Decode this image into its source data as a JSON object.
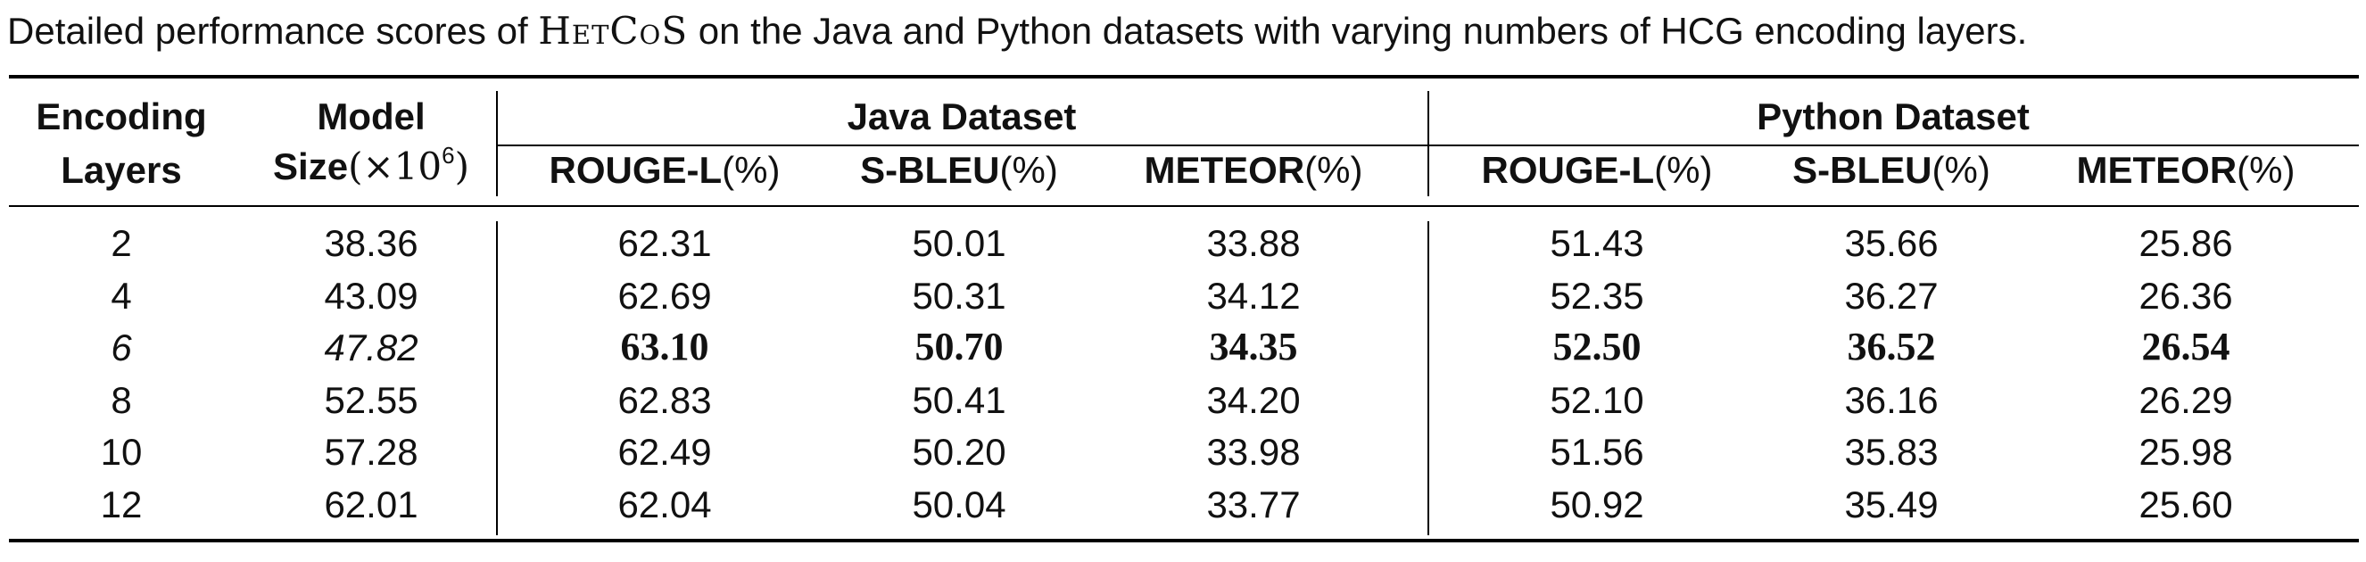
{
  "caption": {
    "prefix": "Detailed performance scores of ",
    "model_name": "HetCoS",
    "suffix": " on the Java and Python datasets with varying numbers of HCG encoding layers."
  },
  "header": {
    "encoding_line1": "Encoding",
    "encoding_line2": "Layers",
    "model_line1": "Model",
    "model_line2_text": "Size",
    "model_line2_unit": "(×10",
    "model_line2_exp": "6",
    "model_line2_close": ")",
    "java_group": "Java Dataset",
    "python_group": "Python Dataset",
    "metrics": [
      {
        "name": "ROUGE-L",
        "unit": "(%)"
      },
      {
        "name": "S-BLEU",
        "unit": "(%)"
      },
      {
        "name": "METEOR",
        "unit": "(%)"
      }
    ]
  },
  "rows": [
    {
      "layers": "2",
      "size": "38.36",
      "java": [
        "62.31",
        "50.01",
        "33.88"
      ],
      "python": [
        "51.43",
        "35.66",
        "25.86"
      ],
      "best": false
    },
    {
      "layers": "4",
      "size": "43.09",
      "java": [
        "62.69",
        "50.31",
        "34.12"
      ],
      "python": [
        "52.35",
        "36.27",
        "26.36"
      ],
      "best": false
    },
    {
      "layers": "6",
      "size": "47.82",
      "java": [
        "63.10",
        "50.70",
        "34.35"
      ],
      "python": [
        "52.50",
        "36.52",
        "26.54"
      ],
      "best": true
    },
    {
      "layers": "8",
      "size": "52.55",
      "java": [
        "62.83",
        "50.41",
        "34.20"
      ],
      "python": [
        "52.10",
        "36.16",
        "26.29"
      ],
      "best": false
    },
    {
      "layers": "10",
      "size": "57.28",
      "java": [
        "62.49",
        "50.20",
        "33.98"
      ],
      "python": [
        "51.56",
        "35.83",
        "25.98"
      ],
      "best": false
    },
    {
      "layers": "12",
      "size": "62.01",
      "java": [
        "62.04",
        "50.04",
        "33.77"
      ],
      "python": [
        "50.92",
        "35.49",
        "25.60"
      ],
      "best": false
    }
  ]
}
